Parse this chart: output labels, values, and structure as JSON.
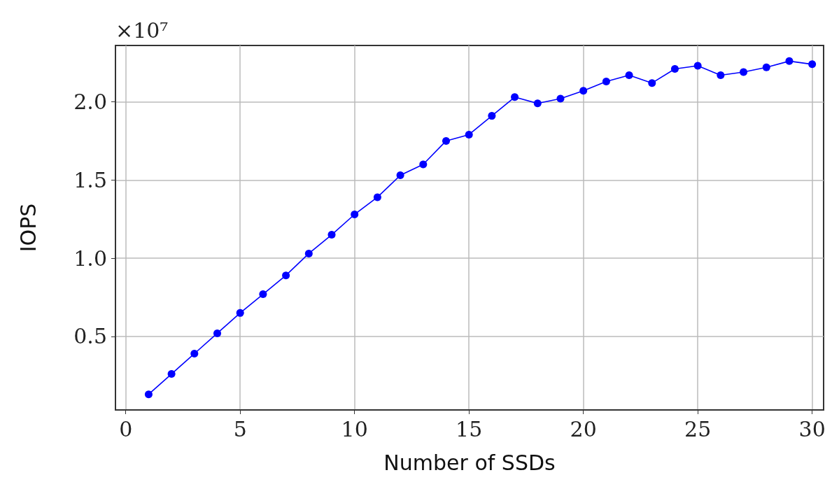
{
  "chart_data": {
    "type": "line",
    "xlabel": "Number of SSDs",
    "ylabel": "IOPS",
    "annotations": [
      "×10⁷"
    ],
    "x": [
      1,
      2,
      3,
      4,
      5,
      6,
      7,
      8,
      9,
      10,
      11,
      12,
      13,
      14,
      15,
      16,
      17,
      18,
      19,
      20,
      21,
      22,
      23,
      24,
      25,
      26,
      27,
      28,
      29,
      30
    ],
    "series": [
      {
        "color": "#0000ff",
        "values": [
          0.13,
          0.26,
          0.39,
          0.52,
          0.65,
          0.77,
          0.89,
          1.03,
          1.15,
          1.28,
          1.39,
          1.53,
          1.6,
          1.75,
          1.79,
          1.91,
          2.03,
          1.99,
          2.02,
          2.07,
          2.13,
          2.17,
          2.12,
          2.21,
          2.23,
          2.17,
          2.19,
          2.22,
          2.26,
          2.24
        ]
      }
    ],
    "xlim": [
      -0.45,
      30.5
    ],
    "ylim": [
      0.03,
      2.36
    ],
    "xticks": [
      0,
      5,
      10,
      15,
      20,
      25,
      30
    ],
    "yticks": [
      0.5,
      {
        "value": 1,
        "label": "1.0"
      },
      1.5,
      {
        "value": 2,
        "label": "2.0"
      }
    ],
    "grid": true,
    "marker": "circle",
    "line_style": "solid"
  }
}
